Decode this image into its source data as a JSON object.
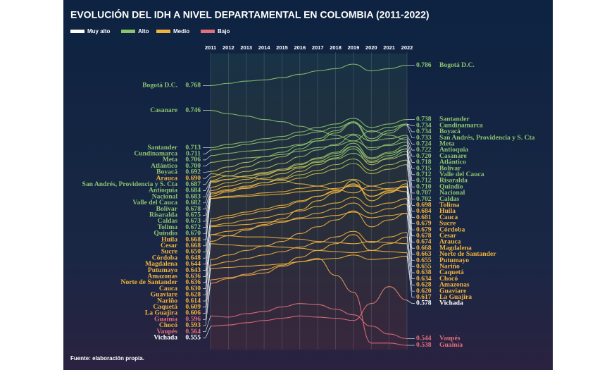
{
  "chart_data": {
    "type": "line",
    "title": "EVOLUCIÓN DEL IDH A NIVEL DEPARTAMENTAL EN COLOMBIA (2011-2022)",
    "source": "Fuente: elaboración propia.",
    "legend": [
      {
        "label": "Muy alto",
        "color": "#ffffff"
      },
      {
        "label": "Alto",
        "color": "#8cc46e"
      },
      {
        "label": "Medio",
        "color": "#f2b33d"
      },
      {
        "label": "Bajo",
        "color": "#e36f7a"
      }
    ],
    "x": [
      2011,
      2012,
      2013,
      2014,
      2015,
      2016,
      2017,
      2018,
      2019,
      2020,
      2021,
      2022
    ],
    "series": [
      {
        "name": "Bogotá D.C.",
        "values": [
          0.768,
          0.77,
          0.772,
          0.773,
          0.775,
          0.778,
          0.781,
          0.783,
          0.787,
          0.781,
          0.783,
          0.786
        ],
        "label_colors": [
          "#8cc46e",
          "#8cc46e"
        ]
      },
      {
        "name": "Casanare",
        "values": [
          0.746,
          0.743,
          0.741,
          0.738,
          0.736,
          0.732,
          0.728,
          0.724,
          0.719,
          0.728,
          0.724,
          0.72
        ],
        "value_labels": [
          null,
          null,
          null,
          null,
          null,
          null,
          null,
          null,
          null,
          null,
          null,
          "0.720"
        ],
        "label_colors": [
          "#8cc46e",
          "#8cc46e"
        ]
      },
      {
        "name": "Santander",
        "values": [
          0.713,
          0.716,
          0.718,
          0.721,
          0.723,
          0.727,
          0.731,
          0.734,
          0.739,
          0.731,
          0.734,
          0.738
        ],
        "label_colors": [
          "#8cc46e",
          "#8cc46e"
        ]
      },
      {
        "name": "Cundinamarca",
        "values": [
          0.711,
          0.713,
          0.716,
          0.718,
          0.72,
          0.724,
          0.727,
          0.731,
          0.735,
          0.727,
          0.731,
          0.734
        ],
        "label_colors": [
          "#8cc46e",
          "#8cc46e"
        ]
      },
      {
        "name": "Meta",
        "values": [
          0.706,
          0.708,
          0.71,
          0.711,
          0.713,
          0.716,
          0.719,
          0.721,
          0.725,
          0.719,
          0.721,
          0.724
        ],
        "label_colors": [
          "#8cc46e",
          "#8cc46e"
        ]
      },
      {
        "name": "Atlántico",
        "values": [
          0.7,
          0.702,
          0.704,
          0.705,
          0.707,
          0.71,
          0.713,
          0.715,
          0.719,
          0.713,
          0.715,
          0.718
        ],
        "value_labels": [
          "0.700",
          null,
          null,
          null,
          null,
          null,
          null,
          null,
          null,
          null,
          null,
          null
        ],
        "label_colors": [
          "#8cc46e",
          "#8cc46e"
        ]
      },
      {
        "name": "Boyacá",
        "values": [
          0.692,
          0.696,
          0.7,
          0.705,
          0.709,
          0.715,
          0.721,
          0.728,
          0.736,
          0.721,
          0.728,
          0.734
        ],
        "label_colors": [
          "#8cc46e",
          "#8cc46e"
        ]
      },
      {
        "name": "Arauca",
        "values": [
          0.69,
          0.688,
          0.687,
          0.685,
          0.684,
          0.681,
          0.679,
          0.676,
          0.673,
          0.679,
          0.676,
          0.674
        ],
        "value_labels": [
          "0.690",
          null,
          null,
          null,
          null,
          null,
          null,
          null,
          null,
          null,
          null,
          null
        ],
        "label_colors": [
          "#f2b33d",
          "#f2b33d"
        ]
      },
      {
        "name": "San Andrés, Providencia y S. Cta",
        "values": [
          0.687,
          0.692,
          0.696,
          0.701,
          0.705,
          0.712,
          0.719,
          0.726,
          0.735,
          0.719,
          0.726,
          0.733
        ],
        "label_colors": [
          "#8cc46e",
          "#8cc46e"
        ]
      },
      {
        "name": "Antioquia",
        "values": [
          0.684,
          0.688,
          0.692,
          0.695,
          0.699,
          0.705,
          0.711,
          0.716,
          0.724,
          0.711,
          0.716,
          0.722
        ],
        "label_colors": [
          "#8cc46e",
          "#8cc46e"
        ]
      },
      {
        "name": "Nacional",
        "values": [
          0.683,
          0.685,
          0.688,
          0.69,
          0.693,
          0.696,
          0.7,
          0.703,
          0.708,
          0.7,
          0.703,
          0.707
        ],
        "label_colors": [
          "#8cc46e",
          "#8cc46e"
        ]
      },
      {
        "name": "Valle del Cauca",
        "values": [
          0.682,
          0.685,
          0.688,
          0.691,
          0.694,
          0.699,
          0.703,
          0.708,
          0.714,
          0.703,
          0.708,
          0.712
        ],
        "label_colors": [
          "#8cc46e",
          "#8cc46e"
        ]
      },
      {
        "name": "Bolívar",
        "values": [
          0.678,
          0.682,
          0.685,
          0.689,
          0.693,
          0.698,
          0.704,
          0.709,
          0.717,
          0.704,
          0.709,
          0.715
        ],
        "label_colors": [
          "#8cc46e",
          "#8cc46e"
        ]
      },
      {
        "name": "Risaralda",
        "values": [
          0.675,
          0.679,
          0.682,
          0.686,
          0.69,
          0.695,
          0.701,
          0.706,
          0.714,
          0.701,
          0.706,
          0.712
        ],
        "label_colors": [
          "#8cc46e",
          "#8cc46e"
        ]
      },
      {
        "name": "Caldas",
        "values": [
          0.673,
          0.676,
          0.679,
          0.682,
          0.685,
          0.689,
          0.693,
          0.698,
          0.703,
          0.693,
          0.698,
          0.702
        ],
        "label_colors": [
          "#8cc46e",
          "#8cc46e"
        ]
      },
      {
        "name": "Tolima",
        "values": [
          0.672,
          0.675,
          0.677,
          0.68,
          0.682,
          0.686,
          0.69,
          0.694,
          0.699,
          0.69,
          0.694,
          0.698
        ],
        "label_colors": [
          "#8cc46e",
          "#f2b33d"
        ]
      },
      {
        "name": "Quindío",
        "values": [
          0.67,
          0.674,
          0.678,
          0.682,
          0.686,
          0.692,
          0.698,
          0.704,
          0.712,
          0.698,
          0.704,
          0.71
        ],
        "value_labels": [
          "0.670",
          null,
          null,
          null,
          null,
          null,
          null,
          null,
          null,
          null,
          null,
          "0.710"
        ],
        "label_colors": [
          "#8cc46e",
          "#8cc46e"
        ]
      },
      {
        "name": "Huila",
        "values": [
          0.668,
          0.67,
          0.671,
          0.673,
          0.674,
          0.677,
          0.679,
          0.682,
          0.685,
          0.679,
          0.682,
          0.684
        ],
        "label_colors": [
          "#f2b33d",
          "#f2b33d"
        ]
      },
      {
        "name": "Cesar",
        "values": [
          0.668,
          0.669,
          0.67,
          0.671,
          0.672,
          0.674,
          0.675,
          0.677,
          0.679,
          0.675,
          0.677,
          0.678
        ],
        "label_colors": [
          "#f2b33d",
          "#f2b33d"
        ]
      },
      {
        "name": "Sucre",
        "values": [
          0.65,
          0.653,
          0.656,
          0.659,
          0.662,
          0.666,
          0.67,
          0.675,
          0.68,
          0.67,
          0.675,
          0.679
        ],
        "value_labels": [
          "0.650",
          null,
          null,
          null,
          null,
          null,
          null,
          null,
          null,
          null,
          null,
          null
        ],
        "label_colors": [
          "#f2b33d",
          "#f2b33d"
        ]
      },
      {
        "name": "Córdoba",
        "values": [
          0.648,
          0.651,
          0.654,
          0.657,
          0.66,
          0.665,
          0.67,
          0.674,
          0.681,
          0.67,
          0.674,
          0.679
        ],
        "label_colors": [
          "#f2b33d",
          "#f2b33d"
        ]
      },
      {
        "name": "Magdalena",
        "values": [
          0.644,
          0.646,
          0.649,
          0.651,
          0.654,
          0.657,
          0.661,
          0.664,
          0.669,
          0.661,
          0.664,
          0.668
        ],
        "label_colors": [
          "#f2b33d",
          "#f2b33d"
        ]
      },
      {
        "name": "Putumayo",
        "values": [
          0.643,
          0.644,
          0.645,
          0.647,
          0.648,
          0.65,
          0.651,
          0.653,
          0.656,
          0.651,
          0.653,
          0.655
        ],
        "label_colors": [
          "#f2b33d",
          "#f2b33d"
        ]
      },
      {
        "name": "Amazonas",
        "values": [
          0.636,
          0.635,
          0.634,
          0.634,
          0.633,
          0.632,
          0.63,
          0.629,
          0.628,
          0.63,
          0.629,
          0.628
        ],
        "label_colors": [
          "#f2b33d",
          "#f2b33d"
        ]
      },
      {
        "name": "Norte de Santander",
        "values": [
          0.636,
          0.639,
          0.641,
          0.644,
          0.647,
          0.651,
          0.655,
          0.659,
          0.664,
          0.655,
          0.659,
          0.663
        ],
        "label_colors": [
          "#f2b33d",
          "#f2b33d"
        ]
      },
      {
        "name": "Cauca",
        "values": [
          0.63,
          0.635,
          0.64,
          0.645,
          0.65,
          0.658,
          0.666,
          0.673,
          0.684,
          0.666,
          0.673,
          0.681
        ],
        "value_labels": [
          "0.630",
          null,
          null,
          null,
          null,
          null,
          null,
          null,
          null,
          null,
          null,
          null
        ],
        "label_colors": [
          "#f2b33d",
          "#f2b33d"
        ]
      },
      {
        "name": "Guaviare",
        "values": [
          0.628,
          0.627,
          0.626,
          0.626,
          0.625,
          0.624,
          0.622,
          0.621,
          0.62,
          0.622,
          0.621,
          0.62
        ],
        "value_labels": [
          null,
          null,
          null,
          null,
          null,
          null,
          null,
          null,
          null,
          null,
          null,
          "0.620"
        ],
        "label_colors": [
          "#f2b33d",
          "#f2b33d"
        ]
      },
      {
        "name": "Nariño",
        "values": [
          0.614,
          0.618,
          0.622,
          0.626,
          0.63,
          0.637,
          0.643,
          0.649,
          0.657,
          0.643,
          0.649,
          0.655
        ],
        "label_colors": [
          "#f2b33d",
          "#f2b33d"
        ]
      },
      {
        "name": "Caquetá",
        "values": [
          0.609,
          0.612,
          0.615,
          0.618,
          0.621,
          0.625,
          0.629,
          0.634,
          0.639,
          0.629,
          0.634,
          0.638
        ],
        "label_colors": [
          "#f2b33d",
          "#f2b33d"
        ]
      },
      {
        "name": "La Guajira",
        "values": [
          0.606,
          0.607,
          0.608,
          0.609,
          0.61,
          0.612,
          0.614,
          0.615,
          0.618,
          0.614,
          0.615,
          0.617
        ],
        "label_colors": [
          "#f2b33d",
          "#f2b33d"
        ]
      },
      {
        "name": "Guainía",
        "values": [
          0.596,
          0.598,
          0.6,
          0.602,
          0.608,
          0.612,
          0.615,
          0.6,
          0.585,
          0.54,
          0.54,
          0.538
        ],
        "label_colors": [
          "#e36f7a",
          "#e36f7a"
        ]
      },
      {
        "name": "Chocó",
        "values": [
          0.593,
          0.597,
          0.601,
          0.605,
          0.609,
          0.616,
          0.622,
          0.628,
          0.636,
          0.622,
          0.628,
          0.634
        ],
        "label_colors": [
          "#f2b33d",
          "#f2b33d"
        ]
      },
      {
        "name": "Vaupés",
        "values": [
          0.564,
          0.563,
          0.566,
          0.568,
          0.572,
          0.575,
          0.574,
          0.57,
          0.565,
          0.555,
          0.548,
          0.544
        ],
        "label_colors": [
          "#e36f7a",
          "#e36f7a"
        ]
      },
      {
        "name": "Vichada",
        "values": [
          0.555,
          0.556,
          0.558,
          0.56,
          0.562,
          0.564,
          0.563,
          0.562,
          0.56,
          0.575,
          0.59,
          0.578
        ],
        "label_colors": [
          "#ffffff",
          "#ffffff"
        ]
      }
    ]
  }
}
